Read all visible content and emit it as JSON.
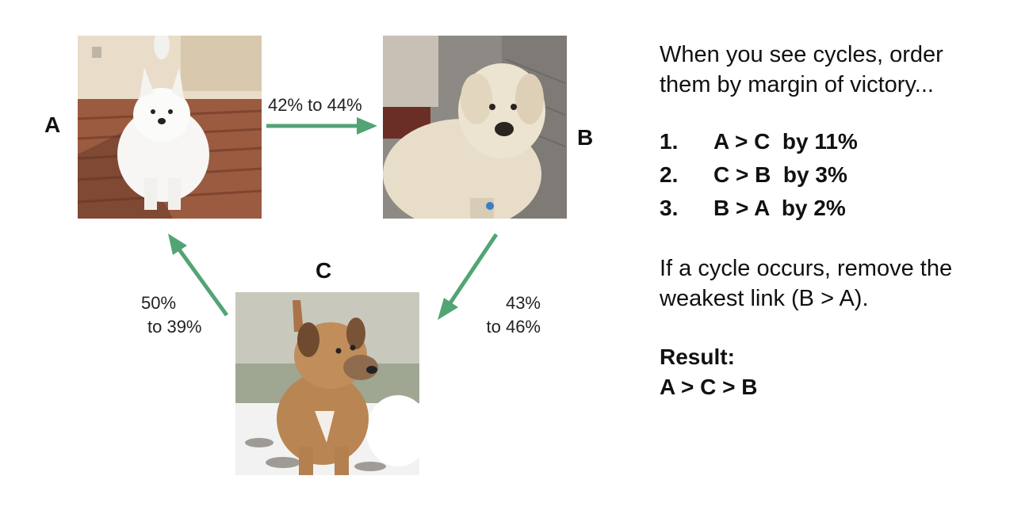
{
  "nodes": {
    "a": {
      "label": "A"
    },
    "b": {
      "label": "B"
    },
    "c": {
      "label": "C"
    }
  },
  "edges": {
    "a_to_b": {
      "line1": "42% to 44%",
      "line2": ""
    },
    "b_to_c": {
      "line1": "43%",
      "line2": "to 46%"
    },
    "c_to_a": {
      "line1": "50%",
      "line2": "to 39%"
    }
  },
  "colors": {
    "arrow": "#52a474"
  },
  "panel": {
    "intro_line1": "When you see cycles, order",
    "intro_line2": "them by margin of victory...",
    "rankings": [
      {
        "num": "1.",
        "text": "A > C  by 11%"
      },
      {
        "num": "2.",
        "text": "C > B  by 3%"
      },
      {
        "num": "3.",
        "text": "B > A  by 2%"
      }
    ],
    "rule_line1": "If a cycle occurs, remove the",
    "rule_line2": "weakest link (B > A).",
    "result_heading": "Result:",
    "result_value": "A > C > B"
  }
}
